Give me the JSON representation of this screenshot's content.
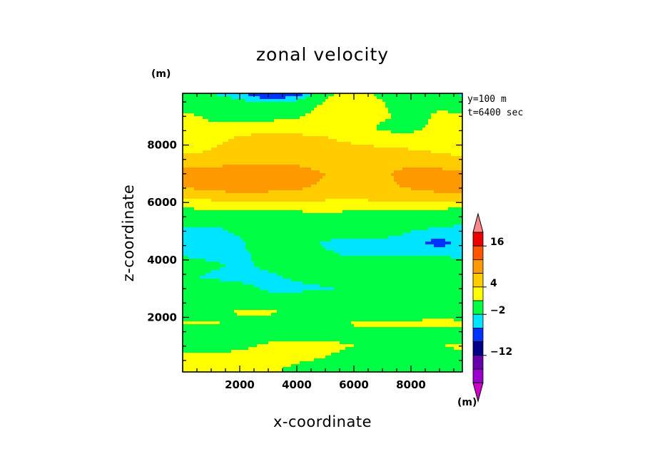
{
  "chart_data": {
    "type": "heatmap",
    "title": "zonal velocity",
    "xlabel": "x-coordinate",
    "ylabel": "z-coordinate",
    "x_unit": "(m)",
    "y_unit": "(m)",
    "xlim": [
      0,
      9800
    ],
    "ylim": [
      100,
      9800
    ],
    "xticks": [
      2000,
      4000,
      6000,
      8000
    ],
    "yticks": [
      2000,
      4000,
      6000,
      8000
    ],
    "annotations": [
      "y=100 m",
      "t=6400 sec"
    ],
    "colorbar": {
      "unit": "(m)",
      "tick_labels": [
        "16",
        "4",
        "-2",
        "-12"
      ],
      "levels": [
        {
          "min": -30,
          "max": -20,
          "color": "#cc00cc"
        },
        {
          "min": -20,
          "max": -16,
          "color": "#9900cc"
        },
        {
          "min": -16,
          "max": -12,
          "color": "#6600aa"
        },
        {
          "min": -12,
          "max": -8,
          "color": "#000088"
        },
        {
          "min": -8,
          "max": -4,
          "color": "#0033ff"
        },
        {
          "min": -4,
          "max": -2,
          "color": "#00e5ff"
        },
        {
          "min": -2,
          "max": 2,
          "color": "#00ff44"
        },
        {
          "min": 2,
          "max": 4,
          "color": "#ffff00"
        },
        {
          "min": 4,
          "max": 6,
          "color": "#ffcc00"
        },
        {
          "min": 6,
          "max": 10,
          "color": "#ff9900"
        },
        {
          "min": 10,
          "max": 16,
          "color": "#ff5500"
        },
        {
          "min": 16,
          "max": 20,
          "color": "#ee0000"
        },
        {
          "min": 20,
          "max": 30,
          "color": "#ff8888"
        }
      ]
    },
    "z_levels": [
      200,
      600,
      1000,
      1400,
      1800,
      2200,
      2600,
      3000,
      3400,
      3800,
      4200,
      4600,
      5000,
      5400,
      5800,
      6200,
      6600,
      7000,
      7400,
      7800,
      8200,
      8600,
      9000,
      9400,
      9800
    ],
    "x_points": [
      200,
      1000,
      2000,
      3000,
      4000,
      5000,
      6000,
      7000,
      8000,
      9000,
      9800
    ],
    "values": [
      [
        2.4,
        2.5,
        2.3,
        2.5,
        1.5,
        1.0,
        0.5,
        0.8,
        1.0,
        1.2,
        1.3
      ],
      [
        2.5,
        2.6,
        2.8,
        2.9,
        2.5,
        2.0,
        1.2,
        1.0,
        1.3,
        1.5,
        1.5
      ],
      [
        1.0,
        1.2,
        1.5,
        2.4,
        2.8,
        2.6,
        2.0,
        1.5,
        1.6,
        2.0,
        2.2
      ],
      [
        0.5,
        0.5,
        0.8,
        1.0,
        1.2,
        1.0,
        1.5,
        1.3,
        1.0,
        0.8,
        0.5
      ],
      [
        2.2,
        2.3,
        1.2,
        0.5,
        0.5,
        0.5,
        2.2,
        2.4,
        2.5,
        2.6,
        2.5
      ],
      [
        0.5,
        0.8,
        2.4,
        2.6,
        1.0,
        0.5,
        1.5,
        0.5,
        0.5,
        0.8,
        0.5
      ],
      [
        0.5,
        0.2,
        -0.5,
        -0.5,
        0.0,
        0.5,
        0.5,
        0.5,
        0.5,
        0.5,
        0.5
      ],
      [
        0.2,
        0.0,
        -1.0,
        -2.5,
        -2.8,
        -2.2,
        -1.5,
        -0.5,
        0.0,
        0.3,
        0.5
      ],
      [
        -1.5,
        -2.5,
        -2.8,
        -2.6,
        -1.5,
        -0.8,
        0.0,
        0.3,
        0.5,
        0.8,
        1.0
      ],
      [
        -0.5,
        -1.5,
        -2.5,
        -1.5,
        0.0,
        0.5,
        0.5,
        0.3,
        0.5,
        -0.5,
        -1.0
      ],
      [
        -2.5,
        -2.8,
        -2.6,
        -1.0,
        -0.5,
        -1.5,
        -2.6,
        -2.8,
        -2.6,
        -2.4,
        -2.5
      ],
      [
        -2.8,
        -3.0,
        -2.5,
        0.5,
        0.5,
        -2.5,
        -2.8,
        -2.6,
        -3.0,
        -5.0,
        -3.0
      ],
      [
        -2.6,
        -2.8,
        -1.5,
        -1.0,
        -0.5,
        0.0,
        -0.5,
        -1.0,
        -2.0,
        -2.5,
        -2.6
      ],
      [
        -0.5,
        -0.8,
        -1.0,
        -0.5,
        0.0,
        0.5,
        0.3,
        0.0,
        -0.5,
        -1.0,
        -1.5
      ],
      [
        2.1,
        2.2,
        2.3,
        2.6,
        2.8,
        2.8,
        2.6,
        2.4,
        2.3,
        2.2,
        2.1
      ],
      [
        4.5,
        4.8,
        5.5,
        5.2,
        5.0,
        4.5,
        4.5,
        4.8,
        5.0,
        5.2,
        5.3
      ],
      [
        6.5,
        7.0,
        7.2,
        7.0,
        6.8,
        5.5,
        5.0,
        5.5,
        6.5,
        7.2,
        7.5
      ],
      [
        6.8,
        7.5,
        7.3,
        7.0,
        7.2,
        6.0,
        5.2,
        5.6,
        6.8,
        7.0,
        6.5
      ],
      [
        5.0,
        5.2,
        5.5,
        5.8,
        5.5,
        5.0,
        5.5,
        5.8,
        5.2,
        4.8,
        4.5
      ],
      [
        3.5,
        4.2,
        4.8,
        5.0,
        5.2,
        5.0,
        4.8,
        4.5,
        4.2,
        3.8,
        3.5
      ],
      [
        2.8,
        3.2,
        4.5,
        4.8,
        4.6,
        4.2,
        3.5,
        3.0,
        2.8,
        3.0,
        2.8
      ],
      [
        2.5,
        2.8,
        3.0,
        3.2,
        3.2,
        3.3,
        3.5,
        1.5,
        1.5,
        2.5,
        2.8
      ],
      [
        2.5,
        1.5,
        1.0,
        1.2,
        1.8,
        2.8,
        3.5,
        2.5,
        1.0,
        2.5,
        2.5
      ],
      [
        0.5,
        0.3,
        -0.5,
        -0.8,
        0.5,
        2.5,
        3.6,
        2.2,
        0.5,
        1.5,
        0.8
      ],
      [
        -0.5,
        -2.0,
        -3.5,
        -7.0,
        -6.0,
        1.5,
        3.0,
        1.5,
        -0.5,
        -1.0,
        -2.5
      ]
    ]
  }
}
